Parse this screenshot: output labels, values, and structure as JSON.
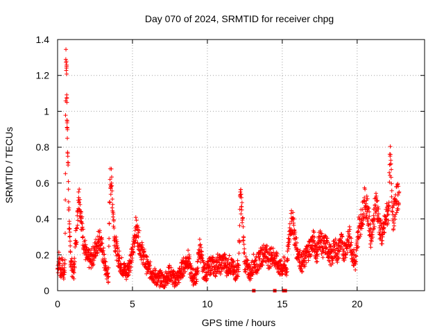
{
  "chart_data": {
    "type": "scatter",
    "title": "Day 070 of 2024, SRMTID for receiver chpg",
    "xlabel": "GPS time / hours",
    "ylabel": "SRMTID / TECUs",
    "xlim": [
      0,
      24.5
    ],
    "ylim": [
      0,
      1.4
    ],
    "grid": true,
    "marker": "plus",
    "color": "#ff0000",
    "x_ticks": [
      0,
      5,
      10,
      15,
      20
    ],
    "y_ticks": [
      0,
      0.2,
      0.4,
      0.6,
      0.8,
      1,
      1.2,
      1.4
    ],
    "x_tick_labels": [
      "0",
      "5",
      "10",
      "15",
      "20"
    ],
    "y_tick_labels": [
      "0",
      "0.2",
      "0.4",
      "0.6",
      "0.8",
      "1",
      "1.2",
      "1.4"
    ],
    "series": [
      {
        "name": "SRMTID",
        "x": [
          0.0,
          0.1,
          0.2,
          0.3,
          0.4,
          0.5,
          0.55,
          0.6,
          0.62,
          0.65,
          0.7,
          0.75,
          0.8,
          0.85,
          0.9,
          1.0,
          1.1,
          1.2,
          1.3,
          1.4,
          1.5,
          1.6,
          1.7,
          1.8,
          1.9,
          2.0,
          2.2,
          2.4,
          2.6,
          2.8,
          3.0,
          3.2,
          3.4,
          3.5,
          3.6,
          3.8,
          4.0,
          4.2,
          4.4,
          4.6,
          4.8,
          5.0,
          5.2,
          5.4,
          5.5,
          5.7,
          5.9,
          6.1,
          6.3,
          6.5,
          6.7,
          6.9,
          7.1,
          7.3,
          7.5,
          7.7,
          7.9,
          8.1,
          8.3,
          8.5,
          8.7,
          8.9,
          9.1,
          9.3,
          9.5,
          9.7,
          9.9,
          10.1,
          10.3,
          10.5,
          10.7,
          10.9,
          11.1,
          11.3,
          11.5,
          11.7,
          11.9,
          12.1,
          12.2,
          12.3,
          12.5,
          12.7,
          12.9,
          13.1,
          13.3,
          13.5,
          13.7,
          13.9,
          14.1,
          14.3,
          14.5,
          14.7,
          14.9,
          15.1,
          15.3,
          15.5,
          15.7,
          15.9,
          16.1,
          16.3,
          16.5,
          16.7,
          16.9,
          17.1,
          17.3,
          17.5,
          17.7,
          17.9,
          18.1,
          18.3,
          18.5,
          18.7,
          18.9,
          19.1,
          19.3,
          19.5,
          19.7,
          19.9,
          20.1,
          20.3,
          20.5,
          20.7,
          20.9,
          21.1,
          21.3,
          21.5,
          21.7,
          21.9,
          22.1,
          22.2,
          22.4,
          22.6,
          22.8
        ],
        "y": [
          0.12,
          0.18,
          0.1,
          0.14,
          0.09,
          0.15,
          1.29,
          1.25,
          1.05,
          0.85,
          0.7,
          0.45,
          0.3,
          0.22,
          0.15,
          0.12,
          0.1,
          0.28,
          0.35,
          0.55,
          0.48,
          0.38,
          0.3,
          0.25,
          0.2,
          0.18,
          0.17,
          0.2,
          0.25,
          0.3,
          0.22,
          0.12,
          0.08,
          0.62,
          0.6,
          0.3,
          0.2,
          0.15,
          0.12,
          0.1,
          0.15,
          0.2,
          0.35,
          0.3,
          0.25,
          0.2,
          0.15,
          0.12,
          0.1,
          0.08,
          0.06,
          0.07,
          0.05,
          0.08,
          0.1,
          0.07,
          0.06,
          0.08,
          0.12,
          0.15,
          0.18,
          0.1,
          0.07,
          0.09,
          0.25,
          0.12,
          0.1,
          0.13,
          0.15,
          0.12,
          0.16,
          0.14,
          0.17,
          0.13,
          0.15,
          0.12,
          0.1,
          0.14,
          0.55,
          0.45,
          0.15,
          0.12,
          0.1,
          0.16,
          0.14,
          0.18,
          0.2,
          0.22,
          0.17,
          0.2,
          0.18,
          0.15,
          0.12,
          0.14,
          0.12,
          0.35,
          0.4,
          0.25,
          0.2,
          0.15,
          0.18,
          0.22,
          0.25,
          0.28,
          0.2,
          0.3,
          0.24,
          0.26,
          0.22,
          0.18,
          0.25,
          0.2,
          0.28,
          0.22,
          0.25,
          0.3,
          0.2,
          0.15,
          0.35,
          0.4,
          0.5,
          0.45,
          0.3,
          0.4,
          0.5,
          0.35,
          0.3,
          0.4,
          0.45,
          0.75,
          0.4,
          0.5,
          0.55
        ],
        "outliers_x": [
          13.1,
          14.5,
          15.1,
          15.2
        ],
        "outliers_y": [
          0,
          0,
          0,
          0
        ]
      }
    ]
  }
}
